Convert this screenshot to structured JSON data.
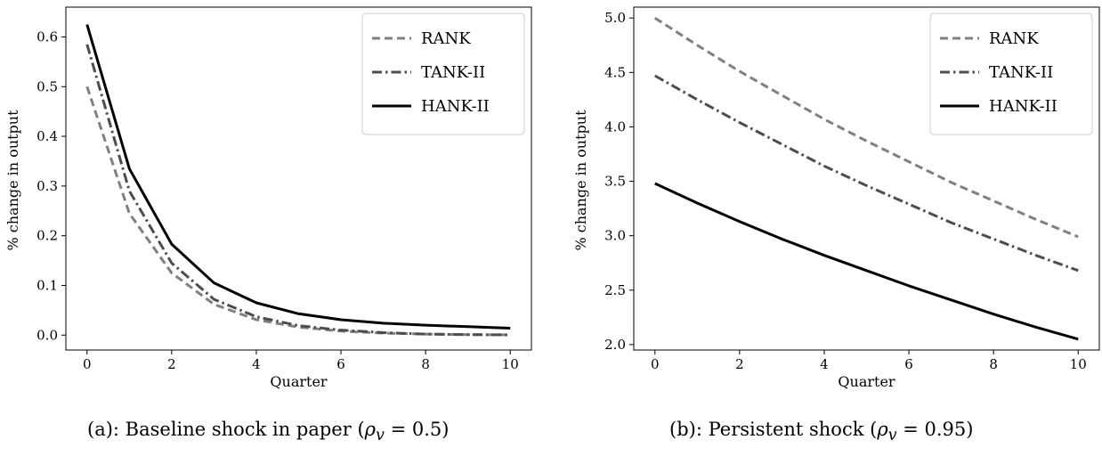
{
  "chart_data": [
    {
      "type": "line",
      "xlabel": "Quarter",
      "ylabel": "% change in output",
      "xlim": [
        -0.5,
        10.5
      ],
      "ylim": [
        -0.03,
        0.66
      ],
      "xticks": [
        0,
        2,
        4,
        6,
        8,
        10
      ],
      "yticks": [
        0.0,
        0.1,
        0.2,
        0.3,
        0.4,
        0.5,
        0.6
      ],
      "ytick_labels": [
        "0.0",
        "0.1",
        "0.2",
        "0.3",
        "0.4",
        "0.5",
        "0.6"
      ],
      "legend_position": "top-right",
      "grid": false,
      "x": [
        0,
        1,
        2,
        3,
        4,
        5,
        6,
        7,
        8,
        9,
        10
      ],
      "series": [
        {
          "name": "RANK",
          "style": "dashed",
          "color": "#808080",
          "values": [
            0.5,
            0.245,
            0.125,
            0.062,
            0.031,
            0.016,
            0.008,
            0.004,
            0.002,
            0.001,
            0.0005
          ]
        },
        {
          "name": "TANK-II",
          "style": "dashdot",
          "color": "#4d4d4d",
          "values": [
            0.585,
            0.29,
            0.145,
            0.072,
            0.037,
            0.019,
            0.01,
            0.005,
            0.002,
            0.001,
            0.0005
          ]
        },
        {
          "name": "HANK-II",
          "style": "solid",
          "color": "#000000",
          "values": [
            0.625,
            0.335,
            0.183,
            0.105,
            0.065,
            0.043,
            0.031,
            0.024,
            0.02,
            0.017,
            0.014
          ]
        }
      ],
      "caption": {
        "text": "(a): Baseline shock in paper (",
        "symbol": "ρ",
        "subscript": "v",
        "value": " = 0.5)"
      }
    },
    {
      "type": "line",
      "xlabel": "Quarter",
      "ylabel": "% change in output",
      "xlim": [
        -0.5,
        10.5
      ],
      "ylim": [
        1.95,
        5.1
      ],
      "xticks": [
        0,
        2,
        4,
        6,
        8,
        10
      ],
      "yticks": [
        2.0,
        2.5,
        3.0,
        3.5,
        4.0,
        4.5,
        5.0
      ],
      "ytick_labels": [
        "2.0",
        "2.5",
        "3.0",
        "3.5",
        "4.0",
        "4.5",
        "5.0"
      ],
      "legend_position": "top-right",
      "grid": false,
      "x": [
        0,
        1,
        2,
        3,
        4,
        5,
        6,
        7,
        8,
        9,
        10
      ],
      "series": [
        {
          "name": "RANK",
          "style": "dashed",
          "color": "#808080",
          "values": [
            5.0,
            4.75,
            4.51,
            4.29,
            4.07,
            3.87,
            3.68,
            3.49,
            3.32,
            3.15,
            2.99
          ]
        },
        {
          "name": "TANK-II",
          "style": "dashdot",
          "color": "#4d4d4d",
          "values": [
            4.47,
            4.25,
            4.04,
            3.84,
            3.64,
            3.46,
            3.29,
            3.12,
            2.97,
            2.82,
            2.68
          ]
        },
        {
          "name": "HANK-II",
          "style": "solid",
          "color": "#000000",
          "values": [
            3.48,
            3.3,
            3.13,
            2.97,
            2.82,
            2.68,
            2.54,
            2.41,
            2.28,
            2.16,
            2.05
          ]
        }
      ],
      "caption": {
        "text": "(b): Persistent shock (",
        "symbol": "ρ",
        "subscript": "v",
        "value": " = 0.95)"
      }
    }
  ]
}
